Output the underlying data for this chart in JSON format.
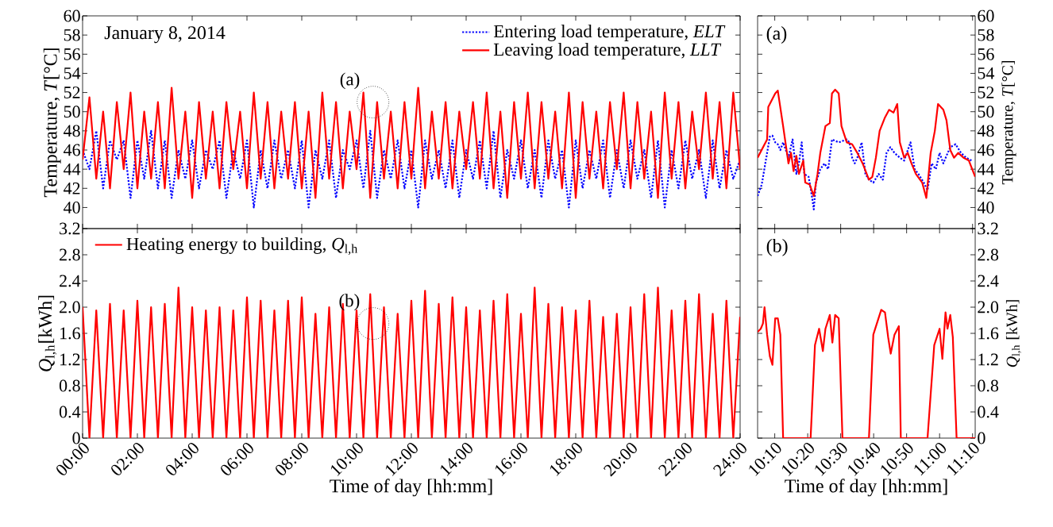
{
  "chart_data": [
    {
      "type": "line",
      "ylabel": "Temperature, *T*[°C]",
      "xlim": [
        0,
        24
      ],
      "ylim": [
        37.8,
        60
      ],
      "tick_labels": "y",
      "legend": "top right",
      "xticks": [
        {
          "value": 0,
          "label": null
        },
        {
          "value": 2,
          "label": null
        },
        {
          "value": 4,
          "label": null
        },
        {
          "value": 6,
          "label": null
        },
        {
          "value": 8,
          "label": null
        },
        {
          "value": 10,
          "label": null
        },
        {
          "value": 12,
          "label": null
        },
        {
          "value": 14,
          "label": null
        },
        {
          "value": 16,
          "label": null
        },
        {
          "value": 18,
          "label": null
        },
        {
          "value": 20,
          "label": null
        },
        {
          "value": 22,
          "label": null
        },
        {
          "value": 24,
          "label": null
        }
      ],
      "yticks": [
        40,
        42,
        44,
        46,
        48,
        50,
        52,
        54,
        56,
        58,
        60
      ],
      "x": [
        0,
        0.25,
        0.5,
        0.75,
        1,
        1.25,
        1.5,
        1.75,
        2,
        2.25,
        2.5,
        2.75,
        3,
        3.25,
        3.5,
        3.75,
        4,
        4.25,
        4.5,
        4.75,
        5,
        5.25,
        5.5,
        5.75,
        6,
        6.25,
        6.5,
        6.75,
        7,
        7.25,
        7.5,
        7.75,
        8,
        8.25,
        8.5,
        8.75,
        9,
        9.25,
        9.5,
        9.75,
        10,
        10.25,
        10.5,
        10.75,
        11,
        11.25,
        11.5,
        11.75,
        12,
        12.25,
        12.5,
        12.75,
        13,
        13.25,
        13.5,
        13.75,
        14,
        14.25,
        14.5,
        14.75,
        15,
        15.25,
        15.5,
        15.75,
        16,
        16.25,
        16.5,
        16.75,
        17,
        17.25,
        17.5,
        17.75,
        18,
        18.25,
        18.5,
        18.75,
        19,
        19.25,
        19.5,
        19.75,
        20,
        20.25,
        20.5,
        20.75,
        21,
        21.25,
        21.5,
        21.75,
        22,
        22.25,
        22.5,
        22.75,
        23,
        23.25,
        23.5,
        23.75,
        24
      ],
      "series": [
        {
          "name": "Entering load temperature, *ELT*",
          "color": "#0000ff",
          "line_style": "dotted",
          "values": [
            46,
            44,
            48,
            42,
            47,
            45,
            47,
            41,
            47,
            43,
            48,
            42,
            47,
            41,
            46,
            43,
            47,
            42,
            46,
            44,
            47,
            41,
            46,
            43,
            47,
            40,
            46,
            42,
            47,
            43,
            46,
            42,
            47,
            40,
            46,
            43,
            47,
            41,
            46,
            44,
            47,
            42,
            48,
            41,
            46,
            43,
            47,
            42,
            46,
            40,
            47,
            43,
            46,
            42,
            47,
            41,
            46,
            43,
            47,
            42,
            48,
            41,
            46,
            43,
            47,
            42,
            46,
            41,
            47,
            43,
            46,
            40,
            47,
            42,
            46,
            43,
            47,
            41,
            46,
            42,
            47,
            43,
            46,
            41,
            47,
            40,
            46,
            42,
            47,
            43,
            46,
            41,
            47,
            42,
            46,
            43,
            45
          ]
        },
        {
          "name": "Leaving load temperature, *LLT*",
          "color": "#ff0000",
          "line_style": "solid",
          "values": [
            45,
            51.5,
            43,
            50,
            42,
            51,
            44,
            52,
            42,
            50,
            43,
            51,
            42,
            52.5,
            43,
            50,
            41,
            51,
            43,
            50,
            42,
            51,
            44,
            50,
            42,
            52,
            43,
            51,
            42,
            50,
            43,
            51,
            42,
            50,
            41,
            52,
            43,
            51,
            42,
            50,
            44,
            52,
            41,
            51,
            43,
            50,
            42,
            51,
            43,
            52.5,
            42,
            50,
            43,
            51,
            42,
            50,
            44,
            51,
            43,
            52,
            42,
            50,
            41,
            51,
            43,
            52,
            42,
            51,
            43,
            50,
            42,
            52,
            41,
            51,
            43,
            50,
            42,
            51,
            44,
            52,
            42,
            51,
            43,
            50,
            41,
            52,
            43,
            51,
            42,
            50,
            44,
            52,
            43,
            51,
            42,
            52,
            44
          ]
        }
      ],
      "annotations": [
        "January 8, 2014",
        {
          "text": "(a)",
          "x": 10.6,
          "y": 51
        }
      ]
    },
    {
      "type": "line",
      "ylabel": "Temperature, *T*[°C]",
      "xlim": [
        10.08,
        11.18
      ],
      "ylim": [
        37.8,
        60
      ],
      "tick_labels": "y",
      "xticks": [
        {
          "value": 10.1667,
          "label": null
        },
        {
          "value": 10.3333,
          "label": null
        },
        {
          "value": 10.5,
          "label": null
        },
        {
          "value": 10.6667,
          "label": null
        },
        {
          "value": 10.8333,
          "label": null
        },
        {
          "value": 11,
          "label": null
        },
        {
          "value": 11.1667,
          "label": null
        }
      ],
      "yticks": [
        40,
        42,
        44,
        46,
        48,
        50,
        52,
        54,
        56,
        58,
        60
      ],
      "series": [
        {
          "color": "#0000ff",
          "line_style": "dotted",
          "x": [
            10.08,
            10.101,
            10.128,
            10.142,
            10.155,
            10.169,
            10.182,
            10.195,
            10.209,
            10.236,
            10.257,
            10.276,
            10.289,
            10.303,
            10.316,
            10.338,
            10.356,
            10.364,
            10.375,
            10.397,
            10.418,
            10.437,
            10.456,
            10.49,
            10.531,
            10.544,
            10.558,
            10.571,
            10.584,
            10.606,
            10.625,
            10.643,
            10.665,
            10.692,
            10.713,
            10.732,
            10.751,
            10.772,
            10.799,
            10.821,
            10.853,
            10.874,
            10.893,
            10.92,
            10.939,
            10.96,
            10.981,
            11.0,
            11.019,
            11.035,
            11.054,
            11.081,
            11.108,
            11.134,
            11.161
          ],
          "values": [
            41.2,
            42.4,
            45.7,
            47.4,
            47.5,
            46.8,
            46.6,
            46.0,
            46.8,
            45.2,
            47.1,
            43.5,
            44.6,
            46.8,
            43.5,
            43.2,
            41.0,
            39.8,
            42.6,
            44.0,
            44.6,
            44.0,
            47.1,
            46.8,
            47.1,
            46.8,
            45.2,
            44.6,
            45.2,
            46.8,
            43.5,
            42.9,
            42.6,
            43.5,
            42.9,
            45.7,
            46.3,
            45.7,
            45.2,
            44.9,
            46.8,
            44.0,
            43.5,
            42.6,
            41.8,
            44.6,
            44.0,
            45.7,
            44.6,
            45.4,
            46.3,
            46.6,
            45.7,
            45.2,
            44.9
          ]
        },
        {
          "color": "#ff0000",
          "line_style": "solid",
          "x": [
            10.08,
            10.128,
            10.134,
            10.169,
            10.182,
            10.209,
            10.236,
            10.249,
            10.262,
            10.276,
            10.289,
            10.311,
            10.321,
            10.343,
            10.364,
            10.383,
            10.397,
            10.423,
            10.445,
            10.456,
            10.472,
            10.49,
            10.504,
            10.531,
            10.558,
            10.584,
            10.611,
            10.643,
            10.66,
            10.678,
            10.697,
            10.724,
            10.745,
            10.767,
            10.786,
            10.799,
            10.821,
            10.839,
            10.858,
            10.88,
            10.912,
            10.933,
            10.955,
            10.976,
            10.992,
            11.019,
            11.035,
            11.054,
            11.073,
            11.094,
            11.121,
            11.148,
            11.18
          ],
          "values": [
            45.2,
            47.1,
            50.5,
            51.9,
            52.2,
            48.5,
            44.6,
            45.7,
            43.8,
            45.4,
            43.5,
            44.9,
            42.6,
            42.4,
            41.2,
            43.5,
            45.7,
            48.5,
            48.8,
            51.9,
            52.3,
            51.9,
            48.5,
            46.8,
            46.6,
            45.7,
            44.6,
            42.9,
            43.2,
            45.2,
            48.0,
            49.4,
            50.2,
            49.9,
            50.8,
            46.8,
            45.2,
            45.7,
            44.6,
            43.5,
            42.6,
            41.0,
            45.7,
            48.0,
            50.8,
            50.2,
            49.1,
            46.0,
            45.2,
            45.7,
            45.2,
            44.9,
            43.2
          ]
        }
      ],
      "annotations": [
        "(a)"
      ]
    },
    {
      "type": "line",
      "ylabel": "*Q*$_{l,h}$[kWh]",
      "xlabel": "Time of day [hh:mm]",
      "xlim": [
        0,
        24
      ],
      "ylim": [
        0,
        3.2
      ],
      "legend": "top left",
      "xticks": [
        {
          "value": 0,
          "label": "00:00"
        },
        {
          "value": 2,
          "label": "02:00"
        },
        {
          "value": 4,
          "label": "04:00"
        },
        {
          "value": 6,
          "label": "06:00"
        },
        {
          "value": 8,
          "label": "08:00"
        },
        {
          "value": 10,
          "label": "10:00"
        },
        {
          "value": 12,
          "label": "12:00"
        },
        {
          "value": 14,
          "label": "14:00"
        },
        {
          "value": 16,
          "label": "16:00"
        },
        {
          "value": 18,
          "label": "18:00"
        },
        {
          "value": 20,
          "label": "20:00"
        },
        {
          "value": 22,
          "label": "22:00"
        },
        {
          "value": 24,
          "label": "24:00"
        }
      ],
      "yticks": [
        0,
        0.4,
        0.8,
        1.2,
        1.6,
        {
          "value": 2,
          "label": "2.0"
        },
        2.4,
        2.8,
        3.2
      ],
      "x": [
        0,
        0.25,
        0.5,
        0.75,
        1,
        1.25,
        1.5,
        1.75,
        2,
        2.25,
        2.5,
        2.75,
        3,
        3.25,
        3.5,
        3.75,
        4,
        4.25,
        4.5,
        4.75,
        5,
        5.25,
        5.5,
        5.75,
        6,
        6.25,
        6.5,
        6.75,
        7,
        7.25,
        7.5,
        7.75,
        8,
        8.25,
        8.5,
        8.75,
        9,
        9.25,
        9.5,
        9.75,
        10,
        10.25,
        10.5,
        10.75,
        11,
        11.25,
        11.5,
        11.75,
        12,
        12.25,
        12.5,
        12.75,
        13,
        13.25,
        13.5,
        13.75,
        14,
        14.25,
        14.5,
        14.75,
        15,
        15.25,
        15.5,
        15.75,
        16,
        16.25,
        16.5,
        16.75,
        17,
        17.25,
        17.5,
        17.75,
        18,
        18.25,
        18.5,
        18.75,
        19,
        19.25,
        19.5,
        19.75,
        20,
        20.25,
        20.5,
        20.75,
        21,
        21.25,
        21.5,
        21.75,
        22,
        22.25,
        22.5,
        22.75,
        23,
        23.25,
        23.5,
        23.75,
        24
      ],
      "series": [
        {
          "name": "Heating energy to building, *Q*$_{l,h}$",
          "color": "#ff0000",
          "line_style": "solid",
          "values": [
            2.0,
            0,
            1.95,
            0,
            2.05,
            0,
            1.95,
            0,
            2.1,
            0,
            2.0,
            0,
            2.05,
            0,
            2.3,
            0,
            2.0,
            0,
            1.95,
            0,
            2.0,
            0,
            1.95,
            0,
            2.15,
            0,
            2.1,
            0,
            1.95,
            0,
            2.1,
            0,
            2.15,
            0,
            1.9,
            0,
            2.0,
            0,
            2.05,
            0,
            1.95,
            0,
            2.2,
            0,
            2.0,
            0,
            1.9,
            0,
            2.1,
            0,
            2.25,
            0,
            2.05,
            0,
            2.15,
            0,
            2.0,
            0,
            1.95,
            0,
            2.1,
            0,
            2.2,
            0,
            1.9,
            0,
            2.3,
            0,
            2.05,
            0,
            2.0,
            0,
            1.95,
            0,
            2.1,
            0,
            1.85,
            0,
            1.9,
            0,
            2.0,
            0,
            2.2,
            0,
            2.3,
            0,
            1.95,
            0,
            2.1,
            0,
            2.2,
            0,
            1.9,
            0,
            2.1,
            0,
            1.85
          ]
        }
      ],
      "annotations": [
        {
          "text": "(b)",
          "x": 10.6,
          "y": 1.75
        }
      ]
    },
    {
      "type": "line",
      "ylabel": "*Q*$_{l,h}$ [kWh]",
      "xlabel": "Time of day [hh:mm]",
      "xlim": [
        10.08,
        11.18
      ],
      "ylim": [
        0,
        3.2
      ],
      "xticks": [
        {
          "value": 10.1667,
          "label": "10:10"
        },
        {
          "value": 10.3333,
          "label": "10:20"
        },
        {
          "value": 10.5,
          "label": "10:30"
        },
        {
          "value": 10.6667,
          "label": "10:40"
        },
        {
          "value": 10.8333,
          "label": "10:50"
        },
        {
          "value": 11,
          "label": "11:00"
        },
        {
          "value": 11.1667,
          "label": "11:10"
        }
      ],
      "yticks": [
        0,
        0.4,
        0.8,
        1.2,
        1.6,
        {
          "value": 2,
          "label": "2.0"
        },
        2.4,
        2.8,
        3.2
      ],
      "series": [
        {
          "color": "#ff0000",
          "line_style": "solid",
          "x": [
            10.08,
            10.096,
            10.107,
            10.115,
            10.128,
            10.142,
            10.155,
            10.169,
            10.182,
            10.195,
            10.209,
            10.348,
            10.37,
            10.391,
            10.41,
            10.423,
            10.445,
            10.458,
            10.472,
            10.49,
            10.509,
            10.643,
            10.665,
            10.705,
            10.724,
            10.74,
            10.753,
            10.772,
            10.794,
            10.804,
            10.939,
            10.973,
            11.0,
            11.014,
            11.03,
            11.04,
            11.054,
            11.067,
            11.086,
            11.18
          ],
          "values": [
            1.62,
            1.67,
            1.75,
            2.0,
            1.58,
            1.25,
            1.12,
            1.83,
            1.83,
            1.58,
            0,
            0,
            1.42,
            1.67,
            1.33,
            1.67,
            1.88,
            1.46,
            1.88,
            1.83,
            0,
            0,
            1.58,
            1.96,
            1.92,
            1.54,
            1.29,
            1.58,
            1.71,
            0,
            0,
            1.42,
            1.67,
            1.21,
            1.92,
            1.67,
            1.88,
            1.54,
            0,
            0
          ]
        }
      ],
      "annotations": [
        "(b)"
      ]
    }
  ]
}
